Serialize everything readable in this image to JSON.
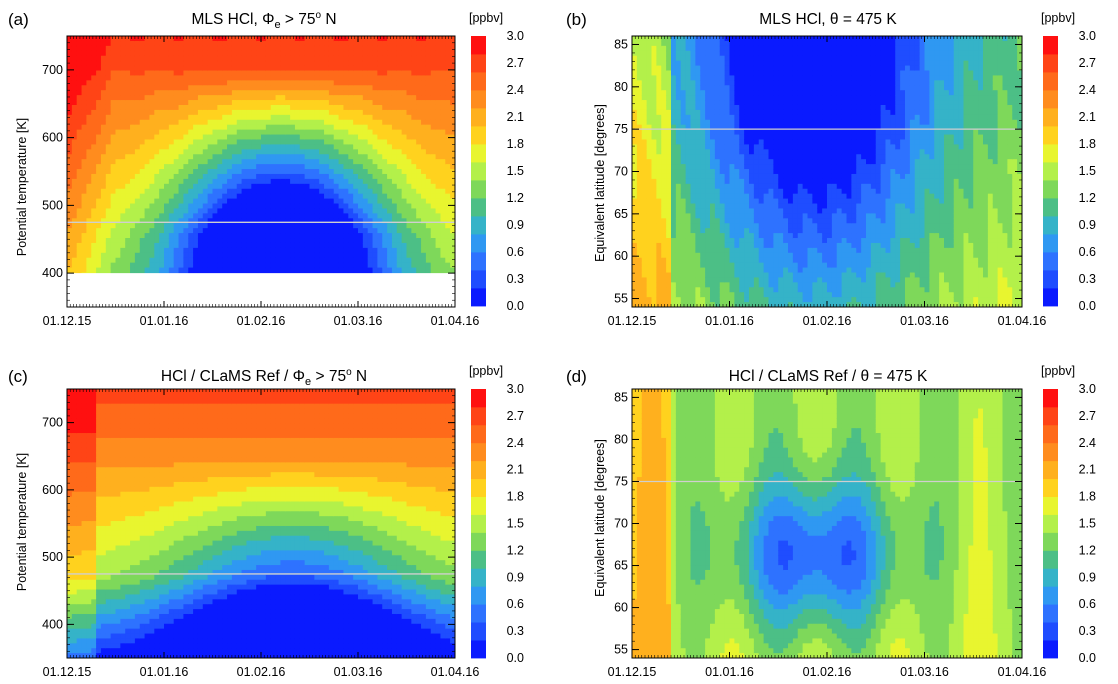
{
  "colors": {
    "levels": [
      "#0a1aff",
      "#1f4dff",
      "#2e72ff",
      "#2f98f2",
      "#35b3c8",
      "#4cbf86",
      "#7ed85a",
      "#b3f04a",
      "#e8f52f",
      "#ffd21e",
      "#ffb01e",
      "#ff8c1e",
      "#ff6a1a",
      "#ff4416",
      "#ff1010"
    ]
  },
  "chart_data": [
    {
      "panel": "(a)",
      "type": "heatmap",
      "title": "MLS HCl, Φe > 75° N",
      "title_parts": {
        "pre": "MLS HCl, ",
        "sym": "Φ",
        "sub": "e",
        "post": "  > 75",
        "sup": "o",
        "tail": " N"
      },
      "ylabel": "Potential  temperature [K]",
      "x_ticks": [
        "01.12.15",
        "01.01.16",
        "01.02.16",
        "01.03.16",
        "01.04.16"
      ],
      "y_ticks": [
        400,
        500,
        600,
        700
      ],
      "ylim": [
        350,
        750
      ],
      "reference_line": 475,
      "colorbar": {
        "unit": "[ppbv]",
        "ticks": [
          "0.0",
          "0.3",
          "0.6",
          "0.9",
          "1.2",
          "1.5",
          "1.8",
          "2.1",
          "2.4",
          "2.7",
          "3.0"
        ],
        "range": [
          0.0,
          3.0
        ]
      }
    },
    {
      "panel": "(b)",
      "type": "heatmap",
      "title": "MLS HCl, θ = 475 K",
      "title_parts": {
        "pre": "MLS HCl, ",
        "sym": "θ",
        "post": " = 475 K"
      },
      "ylabel": "Equivalent latitude [degrees]",
      "x_ticks": [
        "01.12.15",
        "01.01.16",
        "01.02.16",
        "01.03.16",
        "01.04.16"
      ],
      "y_ticks": [
        55,
        60,
        65,
        70,
        75,
        80,
        85
      ],
      "ylim": [
        54,
        86
      ],
      "reference_line": 75,
      "colorbar": {
        "unit": "[ppbv]",
        "ticks": [
          "0.0",
          "0.3",
          "0.6",
          "0.9",
          "1.2",
          "1.5",
          "1.8",
          "2.1",
          "2.4",
          "2.7",
          "3.0"
        ],
        "range": [
          0.0,
          3.0
        ]
      }
    },
    {
      "panel": "(c)",
      "type": "heatmap",
      "title": "HCl / CLaMS Ref / Φe > 75° N",
      "title_parts": {
        "pre": "HCl / CLaMS Ref / ",
        "sym": "Φ",
        "sub": "e",
        "post": "  > 75",
        "sup": "o",
        "tail": " N"
      },
      "ylabel": "Potential  temperature [K]",
      "x_ticks": [
        "01.12.15",
        "01.01.16",
        "01.02.16",
        "01.03.16",
        "01.04.16"
      ],
      "y_ticks": [
        400,
        500,
        600,
        700
      ],
      "ylim": [
        350,
        750
      ],
      "reference_line": 475,
      "colorbar": {
        "unit": "[ppbv]",
        "ticks": [
          "0.0",
          "0.3",
          "0.6",
          "0.9",
          "1.2",
          "1.5",
          "1.8",
          "2.1",
          "2.4",
          "2.7",
          "3.0"
        ],
        "range": [
          0.0,
          3.0
        ]
      }
    },
    {
      "panel": "(d)",
      "type": "heatmap",
      "title": "HCl / CLaMS Ref / θ = 475 K",
      "title_parts": {
        "pre": "HCl / CLaMS Ref / ",
        "sym": "θ",
        "post": " = 475 K"
      },
      "ylabel": "Equivalent latitude [degrees]",
      "x_ticks": [
        "01.12.15",
        "01.01.16",
        "01.02.16",
        "01.03.16",
        "01.04.16"
      ],
      "y_ticks": [
        55,
        60,
        65,
        70,
        75,
        80,
        85
      ],
      "ylim": [
        54,
        86
      ],
      "reference_line": 75,
      "colorbar": {
        "unit": "[ppbv]",
        "ticks": [
          "0.0",
          "0.3",
          "0.6",
          "0.9",
          "1.2",
          "1.5",
          "1.8",
          "2.1",
          "2.4",
          "2.7",
          "3.0"
        ],
        "range": [
          0.0,
          3.0
        ]
      }
    }
  ]
}
